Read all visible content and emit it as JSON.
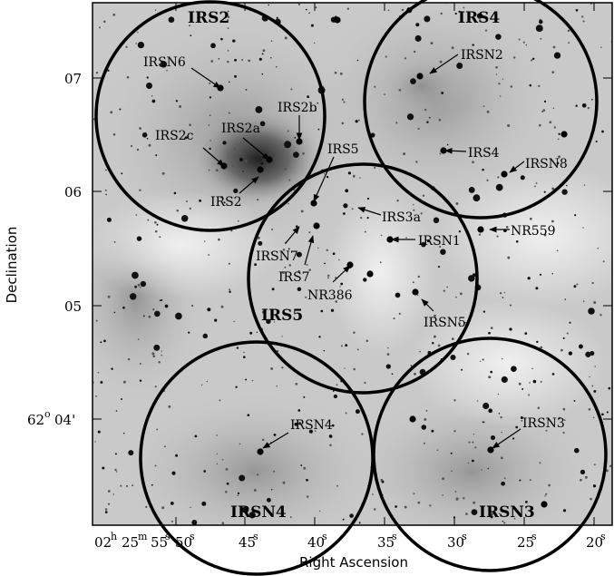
{
  "figure": {
    "axis_labels": {
      "x": "Right Ascension",
      "y": "Declination"
    },
    "x_ticks": {
      "prefix_h": "02",
      "prefix_m": "25",
      "labels": [
        "55",
        "50",
        "45",
        "40",
        "35",
        "30",
        "25",
        "20"
      ],
      "unit": "s"
    },
    "y_ticks": {
      "prefix_deg": "62",
      "labels": [
        "04'",
        "05",
        "06",
        "07"
      ]
    },
    "regions": [
      {
        "id": "irs2",
        "label": "IRS2"
      },
      {
        "id": "irs4",
        "label": "IRS4"
      },
      {
        "id": "irs5",
        "label": "IRS5"
      },
      {
        "id": "irsn4",
        "label": "IRSN4"
      },
      {
        "id": "irsn3",
        "label": "IRSN3"
      }
    ],
    "annotations": [
      "IRSN6",
      "IRS2b",
      "IRS2a",
      "IRS2c",
      "IRS2",
      "IRSN2",
      "IRS4",
      "IRSN8",
      "IRS5",
      "IRS3a",
      "IRSN1",
      "NR559",
      "IRSN7",
      "IRS7",
      "NR386",
      "IRSN5",
      "IRSN4",
      "IRSN3"
    ]
  }
}
